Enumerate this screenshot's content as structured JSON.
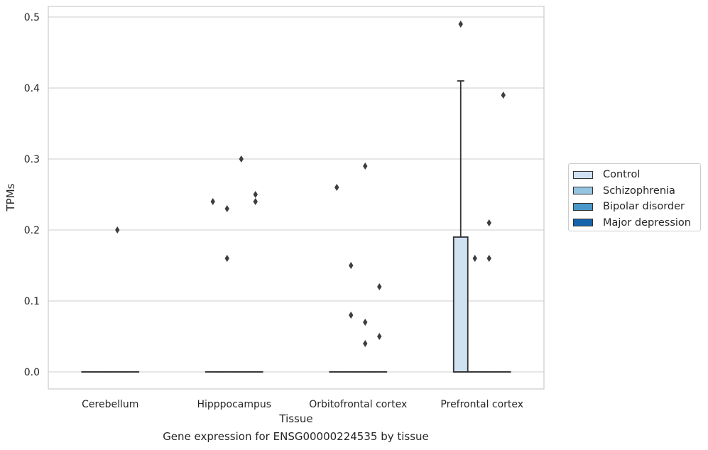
{
  "caption": "Gene expression for ENSG00000224535 by tissue",
  "chart_data": {
    "type": "box",
    "xlabel": "Tissue",
    "ylabel": "TPMs",
    "ylim": [
      -0.024,
      0.515
    ],
    "yticks": [
      "0.0",
      "0.1",
      "0.2",
      "0.3",
      "0.4",
      "0.5"
    ],
    "ytick_values": [
      0.0,
      0.1,
      0.2,
      0.3,
      0.4,
      0.5
    ],
    "categories": [
      "Cerebellum",
      "Hipppocampus",
      "Orbitofrontal cortex",
      "Prefrontal cortex"
    ],
    "grid": "horizontal",
    "legend_position": "right",
    "series": [
      {
        "name": "Control",
        "color": "#d0e1f2",
        "boxes": [
          {
            "q1": 0,
            "median": 0,
            "q3": 0,
            "whisker_low": 0,
            "whisker_high": 0
          },
          {
            "q1": 0,
            "median": 0,
            "q3": 0,
            "whisker_low": 0,
            "whisker_high": 0
          },
          {
            "q1": 0,
            "median": 0,
            "q3": 0,
            "whisker_low": 0,
            "whisker_high": 0
          },
          {
            "q1": 0,
            "median": 0,
            "q3": 0.19,
            "whisker_low": 0,
            "whisker_high": 0.41
          }
        ],
        "outliers": [
          [],
          [
            0.24
          ],
          [
            0.26
          ],
          [
            0.49
          ]
        ]
      },
      {
        "name": "Schizophrenia",
        "color": "#94c4df",
        "boxes": [
          {
            "q1": 0,
            "median": 0,
            "q3": 0,
            "whisker_low": 0,
            "whisker_high": 0
          },
          {
            "q1": 0,
            "median": 0,
            "q3": 0,
            "whisker_low": 0,
            "whisker_high": 0
          },
          {
            "q1": 0,
            "median": 0,
            "q3": 0,
            "whisker_low": 0,
            "whisker_high": 0
          },
          {
            "q1": 0,
            "median": 0,
            "q3": 0,
            "whisker_low": 0,
            "whisker_high": 0
          }
        ],
        "outliers": [
          [],
          [
            0.23,
            0.16
          ],
          [
            0.15,
            0.08
          ],
          [
            0.16
          ]
        ]
      },
      {
        "name": "Bipolar disorder",
        "color": "#4a98c9",
        "boxes": [
          {
            "q1": 0,
            "median": 0,
            "q3": 0,
            "whisker_low": 0,
            "whisker_high": 0
          },
          {
            "q1": 0,
            "median": 0,
            "q3": 0,
            "whisker_low": 0,
            "whisker_high": 0
          },
          {
            "q1": 0,
            "median": 0,
            "q3": 0,
            "whisker_low": 0,
            "whisker_high": 0
          },
          {
            "q1": 0,
            "median": 0,
            "q3": 0,
            "whisker_low": 0,
            "whisker_high": 0
          }
        ],
        "outliers": [
          [
            0.2
          ],
          [
            0.3
          ],
          [
            0.29,
            0.07,
            0.04
          ],
          [
            0.21,
            0.16
          ]
        ]
      },
      {
        "name": "Major depression",
        "color": "#1764ab",
        "boxes": [
          {
            "q1": 0,
            "median": 0,
            "q3": 0,
            "whisker_low": 0,
            "whisker_high": 0
          },
          {
            "q1": 0,
            "median": 0,
            "q3": 0,
            "whisker_low": 0,
            "whisker_high": 0
          },
          {
            "q1": 0,
            "median": 0,
            "q3": 0,
            "whisker_low": 0,
            "whisker_high": 0
          },
          {
            "q1": 0,
            "median": 0,
            "q3": 0,
            "whisker_low": 0,
            "whisker_high": 0
          }
        ],
        "outliers": [
          [],
          [
            0.25,
            0.24
          ],
          [
            0.12,
            0.05
          ],
          [
            0.39
          ]
        ]
      }
    ]
  }
}
